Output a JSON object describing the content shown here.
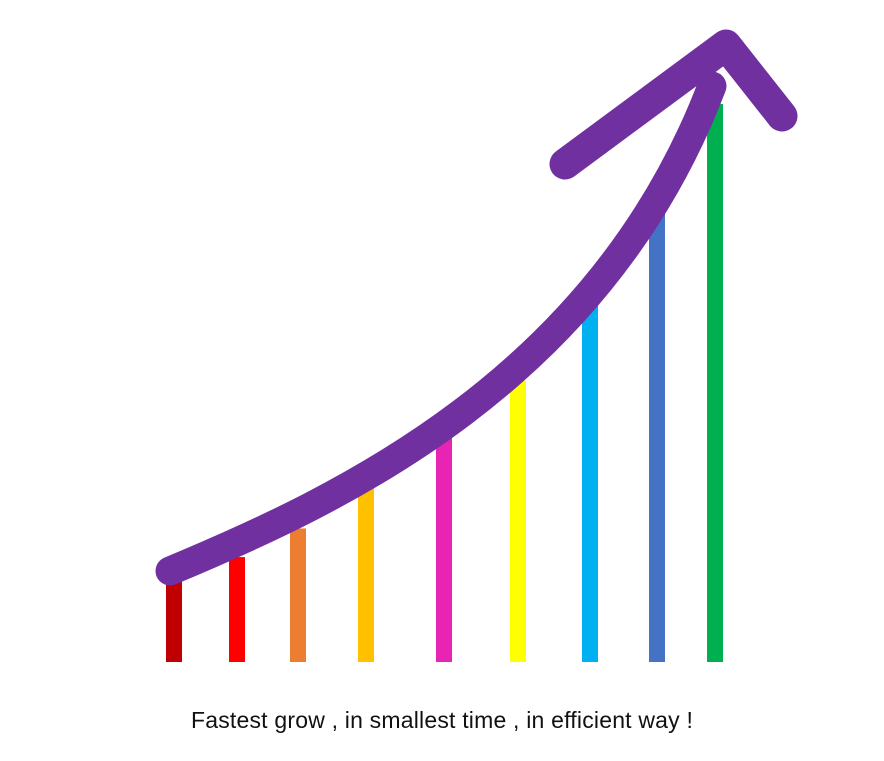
{
  "caption": "Fastest grow , in smallest time , in efficient way !",
  "chart_data": {
    "type": "bar",
    "title": "",
    "xlabel": "",
    "ylabel": "",
    "values": [
      17,
      22,
      28,
      37,
      49,
      59,
      75,
      94,
      117
    ],
    "ylim": [
      0,
      130
    ],
    "colors": [
      "#c00000",
      "#ff0000",
      "#ed7d31",
      "#ffc000",
      "#e824b5",
      "#ffff00",
      "#00b0f0",
      "#4472c4",
      "#00b050"
    ],
    "trend_arrow": {
      "color": "#7030a0",
      "direction": "up-right"
    },
    "grid": false,
    "legend": "none"
  }
}
